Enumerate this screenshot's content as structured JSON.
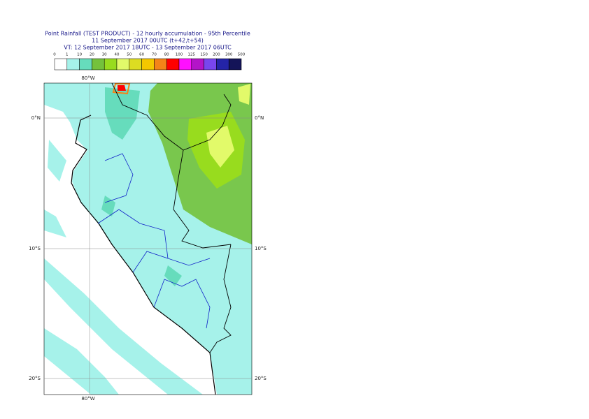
{
  "header": {
    "title_lines": [
      "Point Rainfall (TEST PRODUCT) - 12 hourly accumulation - 95th Percentile",
      "11 September 2017 00UTC (t+42,t+54)",
      "VT: 12 September 2017 18UTC - 13 September 2017 06UTC"
    ]
  },
  "legend": {
    "labels": [
      "0",
      "1",
      "10",
      "20",
      "30",
      "40",
      "50",
      "60",
      "70",
      "80",
      "100",
      "125",
      "150",
      "200",
      "300",
      "500"
    ],
    "colors": [
      "#ffffff",
      "#a6f2ea",
      "#66dcbc",
      "#74c23c",
      "#98dc1e",
      "#e2fa6a",
      "#dcdc22",
      "#f4c800",
      "#f48418",
      "#ff0000",
      "#ff10ff",
      "#b414c8",
      "#7846ee",
      "#2424a8",
      "#141458"
    ]
  },
  "map": {
    "lon_labels": [
      "80°W"
    ],
    "lat_labels": [
      "0°N",
      "10°S",
      "20°S"
    ]
  }
}
